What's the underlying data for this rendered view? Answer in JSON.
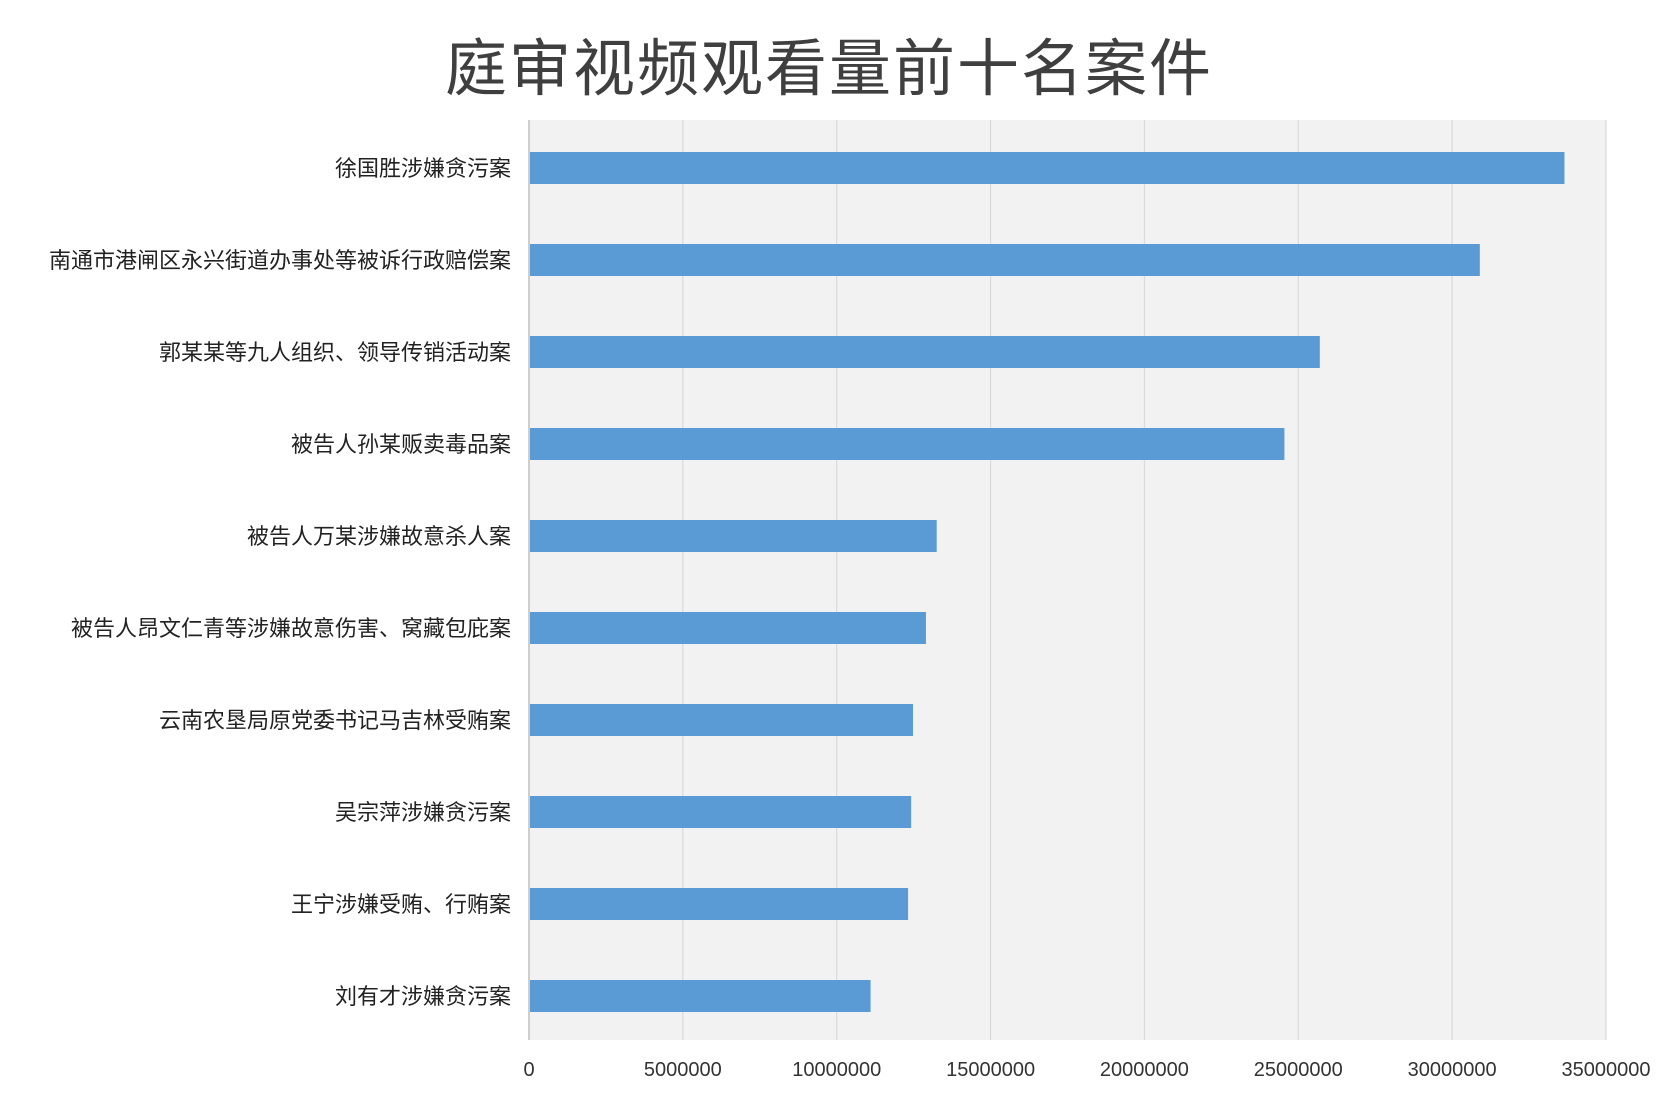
{
  "chart_data": {
    "type": "bar",
    "orientation": "horizontal",
    "title": "庭审视频观看量前十名案件",
    "xlabel": "",
    "ylabel": "",
    "xlim": [
      0,
      35000000
    ],
    "xticks": [
      "0",
      "5000000",
      "10000000",
      "15000000",
      "20000000",
      "25000000",
      "30000000",
      "35000000"
    ],
    "grid": true,
    "legend": "none",
    "bar_color": "#5b9bd5",
    "plot_background": "#f2f2f2",
    "categories": [
      "徐国胜涉嫌贪污案",
      "南通市港闸区永兴街道办事处等被诉行政赔偿案",
      "郭某某等九人组织、领导传销活动案",
      "被告人孙某贩卖毒品案",
      "被告人万某涉嫌故意杀人案",
      "被告人昂文仁青等涉嫌故意伤害、窝藏包庇案",
      "云南农垦局原党委书记马吉林受贿案",
      "吴宗萍涉嫌贪污案",
      "王宁涉嫌受贿、行贿案",
      "刘有才涉嫌贪污案"
    ],
    "values": [
      33650000,
      30900000,
      25700000,
      24550000,
      13250000,
      12900000,
      12480000,
      12420000,
      12320000,
      11100000
    ]
  }
}
